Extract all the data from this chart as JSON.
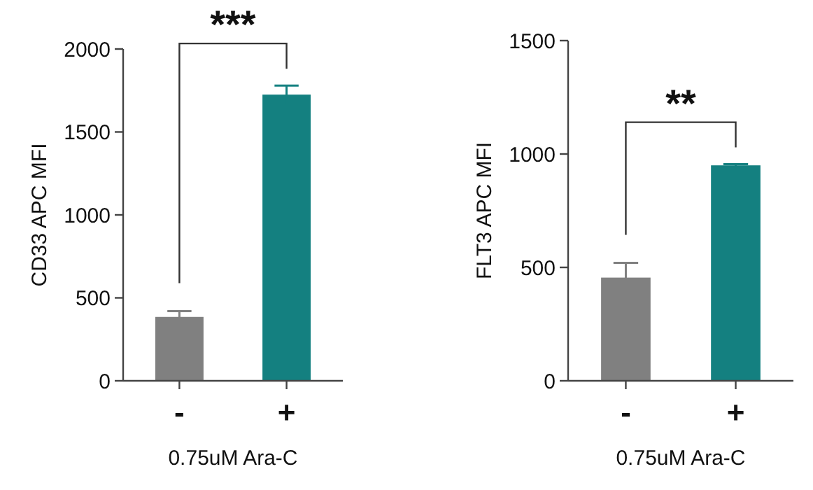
{
  "chart_data": [
    {
      "type": "bar",
      "categories": [
        "-",
        "+"
      ],
      "values": [
        385,
        1725
      ],
      "errors": [
        35,
        55
      ],
      "colors": [
        "#808080",
        "#148080"
      ],
      "ylim": [
        0,
        2000
      ],
      "yticks": [
        0,
        500,
        1000,
        1500,
        2000
      ],
      "ylabel": "CD33 APC MFI",
      "xlabel": "0.75uM Ara-C",
      "annotations": [
        "***"
      ]
    },
    {
      "type": "bar",
      "categories": [
        "-",
        "+"
      ],
      "values": [
        455,
        950
      ],
      "errors": [
        65,
        5
      ],
      "colors": [
        "#808080",
        "#148080"
      ],
      "ylim": [
        0,
        1500
      ],
      "yticks": [
        0,
        500,
        1000,
        1500
      ],
      "ylabel": "FLT3 APC MFI",
      "xlabel": "0.75uM Ara-C",
      "annotations": [
        "**"
      ]
    }
  ]
}
